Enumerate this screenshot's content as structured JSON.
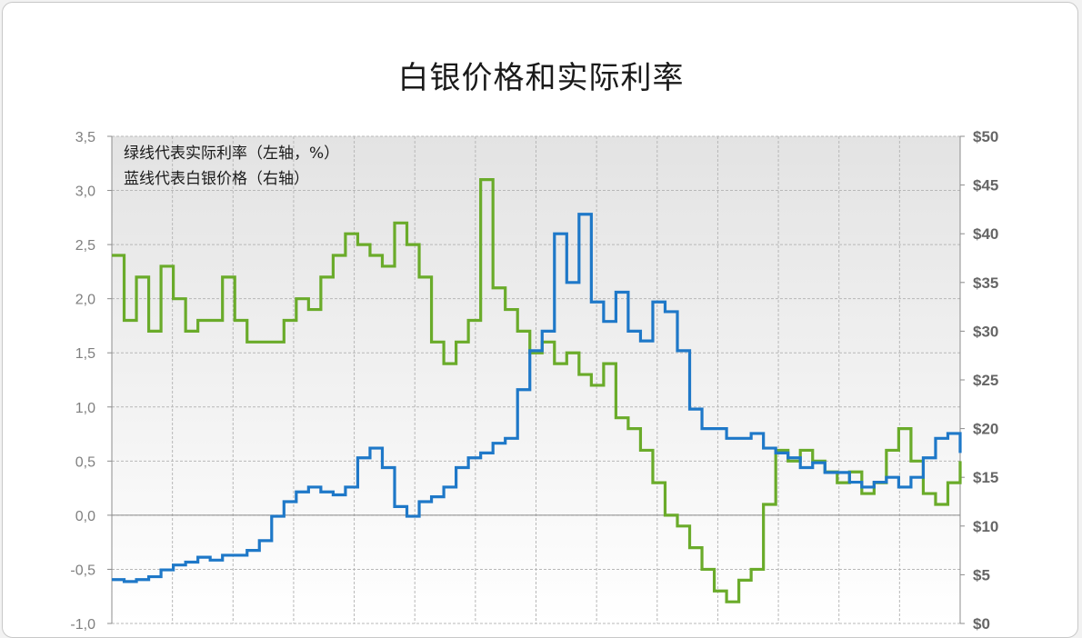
{
  "chart_data": {
    "type": "line",
    "title": "白银价格和实际利率",
    "annotations": [
      "绿线代表实际利率（左轴，%）",
      "蓝线代表白银价格（右轴）"
    ],
    "left_axis": {
      "ylim": [
        -1.0,
        3.5
      ],
      "ticks": [
        "3,5",
        "3,0",
        "2,5",
        "2,0",
        "1,5",
        "1,0",
        "0,5",
        "0,0",
        "-0,5",
        "-1,0"
      ]
    },
    "right_axis": {
      "ylim": [
        0,
        50
      ],
      "ticks": [
        "$50",
        "$45",
        "$40",
        "$35",
        "$30",
        "$25",
        "$20",
        "$15",
        "$10",
        "$5",
        "$0"
      ]
    },
    "grid": true,
    "x_gridlines": 14,
    "x": [
      0,
      1,
      2,
      3,
      4,
      5,
      6,
      7,
      8,
      9,
      10,
      11,
      12,
      13,
      14,
      15,
      16,
      17,
      18,
      19,
      20,
      21,
      22,
      23,
      24,
      25,
      26,
      27,
      28,
      29,
      30,
      31,
      32,
      33,
      34,
      35,
      36,
      37,
      38,
      39,
      40,
      41,
      42,
      43,
      44,
      45,
      46,
      47,
      48,
      49,
      50,
      51,
      52,
      53,
      54,
      55,
      56,
      57,
      58,
      59,
      60,
      61,
      62,
      63,
      64,
      65,
      66,
      67,
      68,
      69
    ],
    "series": [
      {
        "name": "实际利率",
        "axis": "left",
        "color": "#6aab2a",
        "values": [
          2.4,
          1.8,
          2.2,
          1.7,
          2.3,
          2.0,
          1.7,
          1.8,
          1.8,
          2.2,
          1.8,
          1.6,
          1.6,
          1.6,
          1.8,
          2.0,
          1.9,
          2.2,
          2.4,
          2.6,
          2.5,
          2.4,
          2.3,
          2.7,
          2.5,
          2.2,
          1.6,
          1.4,
          1.6,
          1.8,
          3.1,
          2.1,
          1.9,
          1.7,
          1.5,
          1.6,
          1.4,
          1.5,
          1.3,
          1.2,
          1.4,
          0.9,
          0.8,
          0.6,
          0.3,
          0.0,
          -0.1,
          -0.3,
          -0.5,
          -0.7,
          -0.8,
          -0.6,
          -0.5,
          0.1,
          0.6,
          0.5,
          0.6,
          0.5,
          0.4,
          0.3,
          0.4,
          0.2,
          0.3,
          0.6,
          0.8,
          0.5,
          0.2,
          0.1,
          0.3,
          0.5
        ]
      },
      {
        "name": "白银价格",
        "axis": "right",
        "color": "#1e78c8",
        "values": [
          4.5,
          4.3,
          4.5,
          4.8,
          5.5,
          6.0,
          6.3,
          6.8,
          6.5,
          7.0,
          7.0,
          7.5,
          8.5,
          11.0,
          12.5,
          13.5,
          14.0,
          13.5,
          13.2,
          14.0,
          17.0,
          18.0,
          16.0,
          12.0,
          11.0,
          12.5,
          13.0,
          14.0,
          16.0,
          17.0,
          17.5,
          18.5,
          19.0,
          24.0,
          28.0,
          30.0,
          40.0,
          35.0,
          42.0,
          33.0,
          31.0,
          34.0,
          30.0,
          29.0,
          33.0,
          32.0,
          28.0,
          22.0,
          20.0,
          20.0,
          19.0,
          19.0,
          19.5,
          18.0,
          17.5,
          17.0,
          16.0,
          16.5,
          15.5,
          15.5,
          14.5,
          14.0,
          14.5,
          15.0,
          14.0,
          15.0,
          17.0,
          19.0,
          19.5,
          17.5
        ]
      }
    ]
  }
}
